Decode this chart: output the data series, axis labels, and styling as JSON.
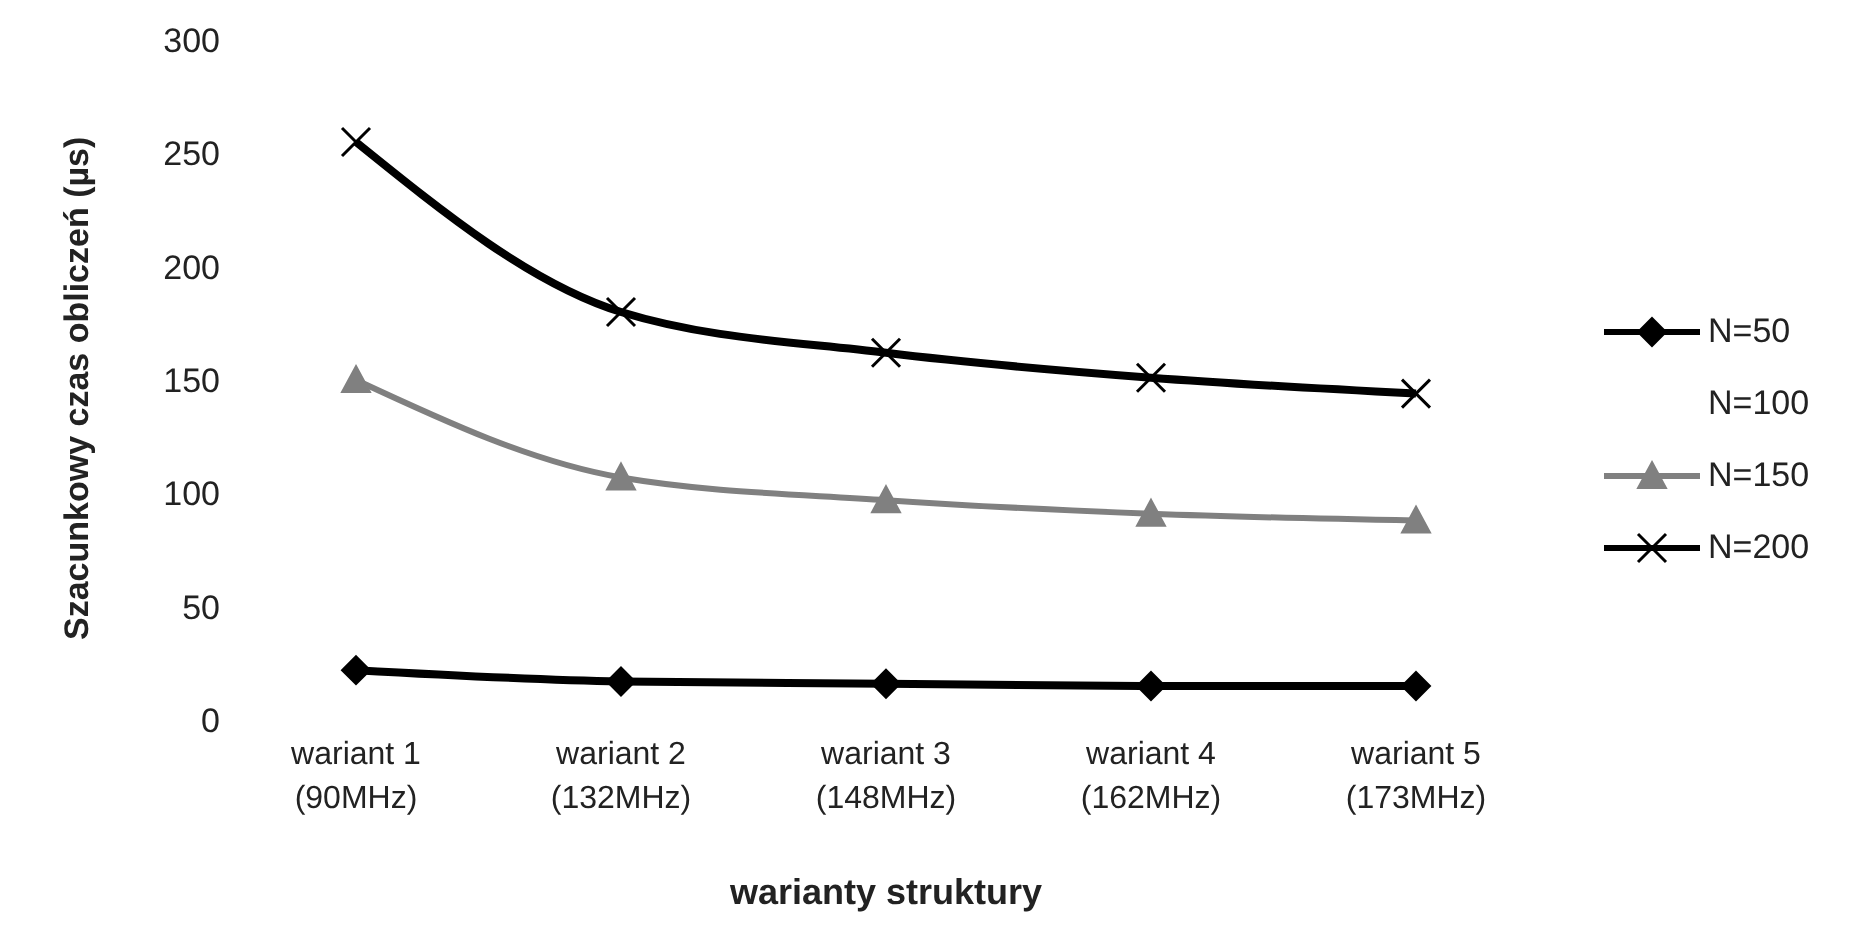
{
  "chart_data": {
    "type": "line",
    "xlabel": "warianty struktury",
    "ylabel": "Szacunkowy czas obliczeń (µs)",
    "categories": [
      "wariant 1\n(90MHz)",
      "wariant 2\n(132MHz)",
      "wariant 3\n(148MHz)",
      "wariant 4\n(162MHz)",
      "wariant 5\n(173MHz)"
    ],
    "series": [
      {
        "name": "N=50",
        "color": "#000000",
        "marker": "diamond",
        "values": [
          22,
          17,
          16,
          15,
          15
        ]
      },
      {
        "name": "N=100",
        "values": [
          null,
          null,
          null,
          null,
          null
        ]
      },
      {
        "name": "N=150",
        "color": "#808080",
        "marker": "triangle",
        "values": [
          150,
          107,
          97,
          91,
          88
        ]
      },
      {
        "name": "N=200",
        "color": "#000000",
        "marker": "cross",
        "values": [
          255,
          180,
          162,
          151,
          144
        ]
      }
    ],
    "ylim": [
      0,
      300
    ],
    "yticks": [
      0,
      50,
      100,
      150,
      200,
      250,
      300
    ],
    "grid": false,
    "legend": "right"
  }
}
